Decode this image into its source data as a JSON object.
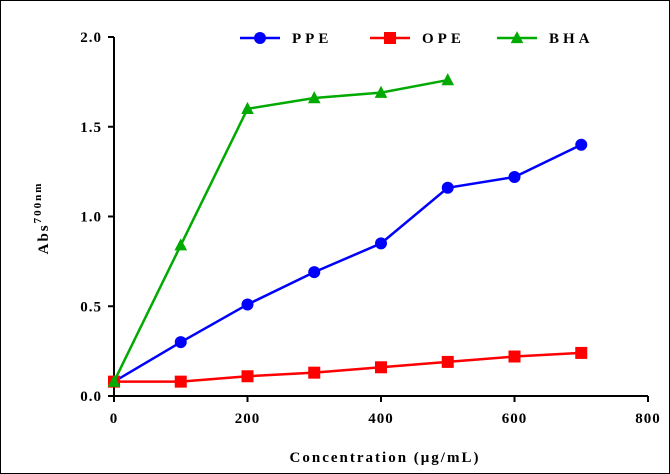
{
  "chart_data": {
    "type": "line",
    "xlabel": "Concentration (μg/mL)",
    "ylabel": "Abs",
    "ylabel_superscript": "700nm",
    "xlim": [
      0,
      800
    ],
    "ylim": [
      0,
      2.0
    ],
    "x_ticks": [
      "0",
      "200",
      "400",
      "600",
      "800"
    ],
    "y_ticks": [
      "0.0",
      "0.5",
      "1.0",
      "1.5",
      "2.0"
    ],
    "grid": false,
    "legend_position": "top",
    "series": [
      {
        "name": "PPE",
        "color": "#0000ff",
        "marker": "circle",
        "x": [
          0,
          100,
          200,
          300,
          400,
          500,
          600,
          700
        ],
        "y": [
          0.08,
          0.3,
          0.51,
          0.69,
          0.85,
          1.16,
          1.22,
          1.4
        ]
      },
      {
        "name": "OPE",
        "color": "#ff0000",
        "marker": "square",
        "x": [
          0,
          100,
          200,
          300,
          400,
          500,
          600,
          700
        ],
        "y": [
          0.08,
          0.08,
          0.11,
          0.13,
          0.16,
          0.19,
          0.22,
          0.24
        ]
      },
      {
        "name": "BHA",
        "color": "#00aa00",
        "marker": "triangle",
        "x": [
          0,
          100,
          200,
          300,
          400,
          500
        ],
        "y": [
          0.08,
          0.84,
          1.6,
          1.66,
          1.69,
          1.76
        ]
      }
    ]
  }
}
